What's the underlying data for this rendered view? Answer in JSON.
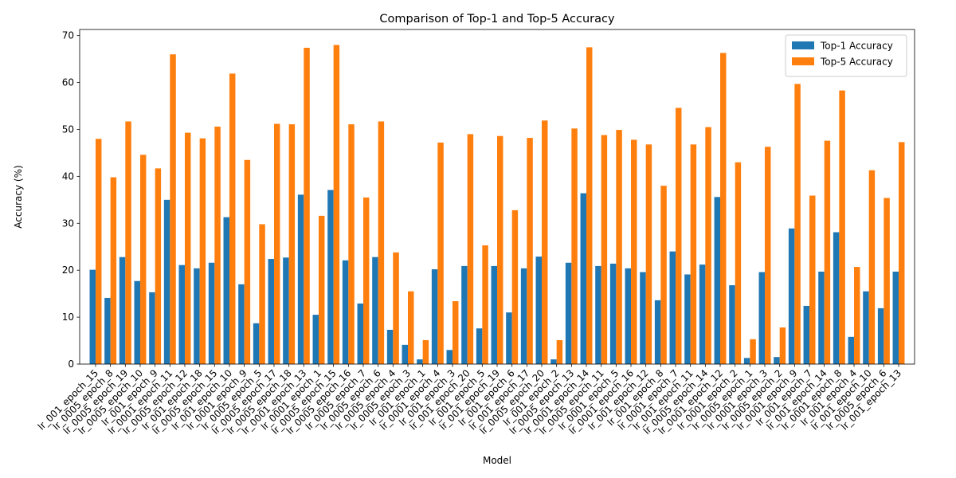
{
  "chart_data": {
    "type": "bar",
    "title": "Comparison of Top-1 and Top-5 Accuracy",
    "xlabel": "Model",
    "ylabel": "Accuracy (%)",
    "categories": [
      "lr_001_epoch_15",
      "lr_0005_epoch_8",
      "lr_0005_epoch_19",
      "lr_0005_epoch_10",
      "lr_001_epoch_9",
      "lr_0001_epoch_11",
      "lr_0005_epoch_12",
      "lr_001_epoch_18",
      "lr_0005_epoch_15",
      "lr_001_epoch_10",
      "lr_0001_epoch_9",
      "lr_0005_epoch_5",
      "lr_0005_epoch_17",
      "lr_0005_epoch_18",
      "lr_0001_epoch_13",
      "lr_0001_epoch_1",
      "lr_0005_epoch_15",
      "lr_0005_epoch_16",
      "lr_0005_epoch_7",
      "lr_0005_epoch_6",
      "lr_0005_epoch_4",
      "lr_0005_epoch_3",
      "lr_001_epoch_1",
      "lr_0001_epoch_4",
      "lr_001_epoch_3",
      "lr_001_epoch_20",
      "lr_001_epoch_5",
      "lr_001_epoch_19",
      "lr_001_epoch_6",
      "lr_001_epoch_17",
      "lr_0005_epoch_20",
      "lr_001_epoch_2",
      "lr_0005_epoch_13",
      "lr_0001_epoch_14",
      "lr_0005_epoch_11",
      "lr_0001_epoch_5",
      "lr_0001_epoch_16",
      "lr_001_epoch_12",
      "lr_001_epoch_8",
      "lr_0001_epoch_7",
      "lr_001_epoch_11",
      "lr_0005_epoch_14",
      "lr_0001_epoch_12",
      "lr_0001_epoch_2",
      "lr_0005_epoch_1",
      "lr_0001_epoch_3",
      "lr_0005_epoch_2",
      "lr_0001_epoch_9",
      "lr_001_epoch_7",
      "lr_001_epoch_14",
      "lr_0001_epoch_8",
      "lr_001_epoch_4",
      "lr_001_epoch_10",
      "lr_0005_epoch_6",
      "lr_001_epoch_13"
    ],
    "series": [
      {
        "name": "Top-1 Accuracy",
        "color": "#1f77b4",
        "values": [
          20.1,
          14.1,
          22.8,
          17.7,
          15.3,
          35.0,
          21.1,
          20.4,
          21.6,
          31.3,
          17.0,
          8.7,
          22.4,
          22.7,
          36.1,
          10.5,
          37.1,
          22.1,
          12.9,
          22.8,
          7.3,
          4.1,
          1.0,
          20.2,
          3.0,
          20.9,
          7.6,
          20.9,
          11.0,
          20.4,
          22.9,
          1.0,
          21.6,
          36.4,
          20.9,
          21.4,
          20.4,
          19.6,
          13.6,
          24.0,
          19.1,
          21.2,
          35.6,
          16.8,
          1.3,
          19.6,
          1.5,
          28.9,
          12.4,
          19.7,
          28.1,
          5.8,
          15.5,
          11.9,
          19.7
        ]
      },
      {
        "name": "Top-5 Accuracy",
        "color": "#ff7f0e",
        "values": [
          48.0,
          39.8,
          51.7,
          44.6,
          41.7,
          66.0,
          49.3,
          48.1,
          50.6,
          61.9,
          43.5,
          29.8,
          51.2,
          51.1,
          67.4,
          31.6,
          68.0,
          51.1,
          35.5,
          51.7,
          23.8,
          15.5,
          5.1,
          47.2,
          13.4,
          49.0,
          25.3,
          48.6,
          32.8,
          48.2,
          51.9,
          5.1,
          50.2,
          67.5,
          48.8,
          49.9,
          47.8,
          46.8,
          38.0,
          54.6,
          46.8,
          50.5,
          66.3,
          43.0,
          5.3,
          46.3,
          7.8,
          59.7,
          35.9,
          47.6,
          58.3,
          20.7,
          41.3,
          35.4,
          47.3
        ]
      }
    ],
    "ylim": [
      0,
      71.3
    ],
    "yticks": [
      0,
      10,
      20,
      30,
      40,
      50,
      60,
      70
    ],
    "legend": "upper right"
  }
}
